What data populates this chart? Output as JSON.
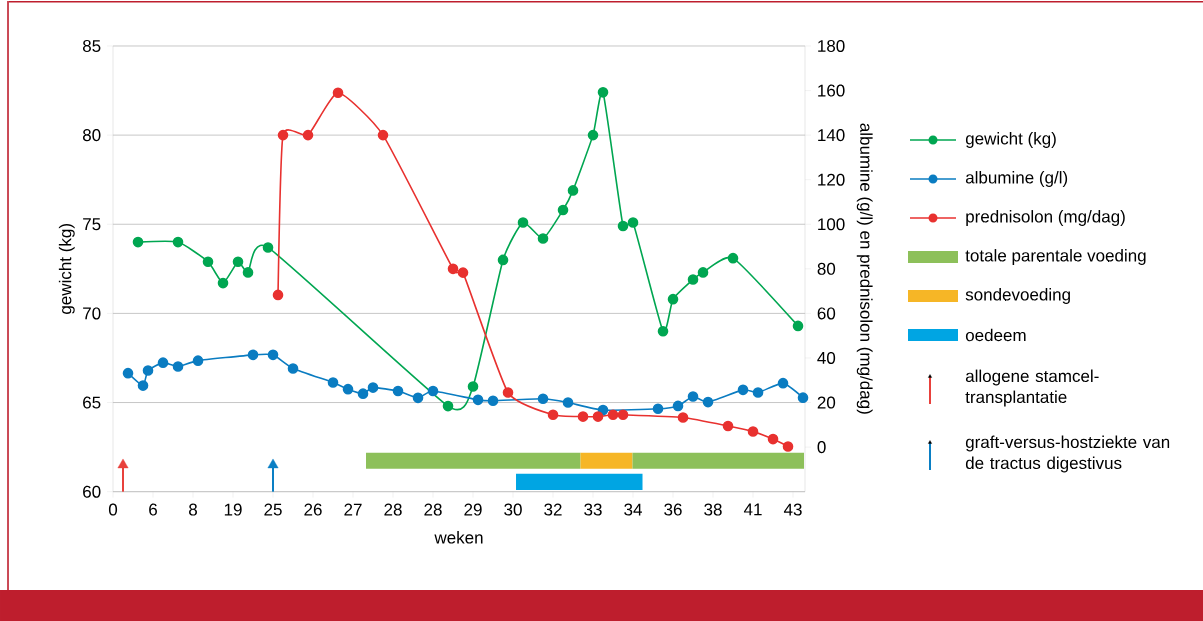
{
  "chart_data": {
    "type": "line",
    "xlabel": "weken",
    "ylabel": "gewicht (kg)",
    "y2label": "albumine (g/l) en prednisolon (mg/dag)",
    "categories": [
      "0",
      null,
      null,
      null,
      null,
      null,
      null,
      null,
      "6",
      null,
      null,
      null,
      null,
      null,
      null,
      null,
      "8",
      null,
      null,
      null,
      null,
      null,
      null,
      null,
      "19",
      null,
      null,
      null,
      null,
      null,
      null,
      null,
      "25",
      null,
      null,
      null,
      null,
      null,
      null,
      null,
      "26",
      null,
      null,
      null,
      null,
      null,
      null,
      null,
      "27",
      null,
      null,
      null,
      null,
      null,
      null,
      null,
      "28",
      null,
      null,
      null,
      null,
      null,
      null,
      null,
      "28",
      null,
      null,
      null,
      null,
      null,
      null,
      null,
      "29",
      null,
      null,
      null,
      null,
      null,
      null,
      null,
      "30",
      null,
      null,
      null,
      null,
      null,
      null,
      null,
      "32",
      null,
      null,
      null,
      null,
      null,
      null,
      null,
      "33",
      null,
      null,
      null,
      null,
      null,
      null,
      null,
      "34",
      null,
      null,
      null,
      null,
      null,
      null,
      null,
      "36",
      null,
      null,
      null,
      null,
      null,
      null,
      null,
      "38",
      null,
      null,
      null,
      null,
      null,
      null,
      null,
      "41",
      null,
      null,
      null,
      null,
      null,
      null,
      null,
      "43",
      null,
      null
    ],
    "ylim": [
      60,
      85
    ],
    "y2lim": [
      -20,
      180
    ],
    "yticks": [
      60,
      65,
      70,
      75,
      80,
      85
    ],
    "y2ticks": [
      0,
      20,
      40,
      60,
      80,
      100,
      120,
      140,
      160,
      180
    ],
    "grid": "y",
    "legend": "right",
    "marker": "circle",
    "series": [
      {
        "name": "gewicht (kg)",
        "color": "#00a651",
        "values": [
          null,
          null,
          null,
          null,
          null,
          74.0,
          null,
          null,
          null,
          null,
          null,
          null,
          null,
          74.0,
          null,
          null,
          null,
          null,
          null,
          72.9,
          null,
          null,
          71.7,
          null,
          null,
          72.9,
          null,
          72.3,
          null,
          null,
          null,
          73.7,
          null,
          null,
          null,
          null,
          null,
          null,
          null,
          null,
          null,
          null,
          null,
          null,
          null,
          null,
          null,
          null,
          null,
          null,
          null,
          null,
          null,
          null,
          null,
          null,
          null,
          null,
          null,
          null,
          null,
          null,
          null,
          null,
          null,
          null,
          null,
          64.8,
          null,
          null,
          null,
          null,
          65.9,
          null,
          null,
          null,
          null,
          null,
          73.0,
          null,
          null,
          null,
          75.1,
          null,
          null,
          null,
          74.2,
          null,
          null,
          null,
          75.8,
          null,
          76.9,
          null,
          null,
          null,
          80.0,
          null,
          82.4,
          null,
          null,
          null,
          74.9,
          null,
          75.1,
          null,
          null,
          null,
          null,
          null,
          69.0,
          null,
          70.8,
          null,
          null,
          null,
          71.9,
          null,
          72.3,
          null,
          null,
          null,
          null,
          null,
          73.1,
          null,
          null,
          null,
          null,
          null,
          null,
          null,
          null,
          null,
          null,
          null,
          null,
          69.3,
          null
        ]
      },
      {
        "name": "albumine (g/l)",
        "color": "#0a7cc1",
        "axis": "y2",
        "values": [
          null,
          null,
          null,
          33.2,
          null,
          null,
          27.6,
          34.4,
          null,
          null,
          37.9,
          null,
          null,
          36.2,
          null,
          null,
          null,
          38.8,
          null,
          null,
          null,
          null,
          null,
          null,
          null,
          null,
          null,
          null,
          41.4,
          null,
          null,
          null,
          41.4,
          null,
          null,
          null,
          35.3,
          null,
          null,
          null,
          null,
          null,
          null,
          null,
          29.0,
          null,
          null,
          26.0,
          null,
          null,
          24.0,
          null,
          26.7,
          null,
          null,
          null,
          null,
          25.2,
          null,
          null,
          null,
          22.1,
          null,
          null,
          25.2,
          null,
          null,
          null,
          null,
          null,
          null,
          null,
          null,
          21.2,
          null,
          null,
          20.8,
          null,
          null,
          null,
          null,
          null,
          null,
          null,
          null,
          null,
          21.7,
          null,
          null,
          null,
          null,
          20.0,
          null,
          null,
          null,
          null,
          null,
          null,
          16.6,
          null,
          null,
          null,
          null,
          null,
          null,
          null,
          null,
          null,
          null,
          17.2,
          null,
          null,
          null,
          18.5,
          null,
          null,
          22.7,
          null,
          null,
          20.2,
          null,
          null,
          null,
          null,
          null,
          null,
          25.7,
          null,
          null,
          24.5,
          null,
          null,
          null,
          null,
          28.7,
          null,
          null,
          null,
          22.2
        ]
      },
      {
        "name": "prednisolon (mg/dag)",
        "color": "#e8312f",
        "axis": "y2",
        "values": [
          null,
          null,
          null,
          null,
          null,
          null,
          null,
          null,
          null,
          null,
          null,
          null,
          null,
          null,
          null,
          null,
          null,
          null,
          null,
          null,
          null,
          null,
          null,
          null,
          null,
          null,
          null,
          null,
          null,
          null,
          null,
          null,
          null,
          68.3,
          140,
          null,
          null,
          null,
          null,
          140,
          null,
          null,
          null,
          null,
          null,
          159,
          null,
          null,
          null,
          null,
          null,
          null,
          null,
          null,
          140,
          null,
          null,
          null,
          null,
          null,
          null,
          null,
          null,
          null,
          null,
          null,
          null,
          null,
          80,
          null,
          78.3,
          null,
          null,
          null,
          null,
          null,
          null,
          null,
          null,
          24.5,
          null,
          null,
          null,
          null,
          null,
          null,
          null,
          null,
          14.5,
          null,
          null,
          null,
          null,
          null,
          13.7,
          null,
          null,
          13.7,
          null,
          null,
          14.5,
          null,
          14.5,
          null,
          null,
          null,
          null,
          null,
          null,
          null,
          null,
          null,
          null,
          null,
          13.3,
          null,
          null,
          null,
          null,
          null,
          null,
          null,
          null,
          9.5,
          null,
          null,
          null,
          null,
          7.0,
          null,
          null,
          null,
          3.6,
          null,
          null,
          0.3,
          null,
          null,
          null
        ]
      },
      {
        "name": "allogene stamcel-transplantatie",
        "type": "scatter",
        "marker": "triangle",
        "color": "#e8413c",
        "values": [
          null,
          null,
          61.5,
          null,
          null,
          null,
          null,
          null,
          null,
          null,
          null,
          null,
          null,
          null,
          null,
          null,
          null,
          null,
          null,
          null,
          null,
          null,
          null,
          null,
          null,
          null,
          null,
          null,
          null,
          null,
          null,
          null,
          null,
          null,
          null,
          null,
          null,
          null,
          null,
          null,
          null,
          null,
          null,
          null,
          null,
          null,
          null,
          null,
          null,
          null,
          null,
          null,
          null,
          null,
          null,
          null,
          null,
          null,
          null,
          null,
          null,
          null,
          null,
          null,
          null,
          null,
          null,
          null,
          null,
          null,
          null,
          null,
          null,
          null,
          null,
          null,
          null,
          null,
          null,
          null,
          null,
          null,
          null,
          null,
          null,
          null,
          null,
          null,
          null,
          null,
          null,
          null,
          null,
          null,
          null,
          null,
          null,
          null,
          null,
          null,
          null,
          null,
          null,
          null,
          null,
          null,
          null,
          null,
          null,
          null,
          null,
          null,
          null,
          null,
          null,
          null,
          null,
          null,
          null,
          null,
          null,
          null,
          null,
          null,
          null,
          null,
          null,
          null,
          null,
          null,
          null,
          null,
          null,
          null,
          null,
          null,
          null,
          null,
          null
        ]
      },
      {
        "name": "graft-versus-hostziekte van de tractus digestivus",
        "type": "scatter",
        "marker": "triangle",
        "color": "#0a7fc4",
        "values": [
          null,
          null,
          null,
          null,
          null,
          null,
          null,
          null,
          null,
          null,
          null,
          null,
          null,
          null,
          null,
          null,
          null,
          null,
          null,
          null,
          null,
          null,
          null,
          null,
          null,
          null,
          null,
          null,
          null,
          null,
          null,
          null,
          61.5,
          null,
          null,
          null,
          null,
          null,
          null,
          null,
          null,
          null,
          null,
          null,
          null,
          null,
          null,
          null,
          null,
          null,
          null,
          null,
          null,
          null,
          null,
          null,
          null,
          null,
          null,
          null,
          null,
          null,
          null,
          null,
          null,
          null,
          null,
          null,
          null,
          null,
          null,
          null,
          null,
          null,
          null,
          null,
          null,
          null,
          null,
          null,
          null,
          null,
          null,
          null,
          null,
          null,
          null,
          null,
          null,
          null,
          null,
          null,
          null,
          null,
          null,
          null,
          null,
          null,
          null,
          null,
          null,
          null,
          null,
          null,
          null,
          null,
          null,
          null,
          null,
          null,
          null,
          null,
          null,
          null,
          null,
          null,
          null,
          null,
          null,
          null,
          null,
          null,
          null,
          null,
          null,
          null,
          null,
          null,
          null,
          null,
          null,
          null,
          null,
          null,
          null,
          null,
          null,
          null,
          null
        ]
      }
    ],
    "annotations": [
      "totale parentale voeding",
      "sondevoeding",
      "oedeem"
    ]
  }
}
